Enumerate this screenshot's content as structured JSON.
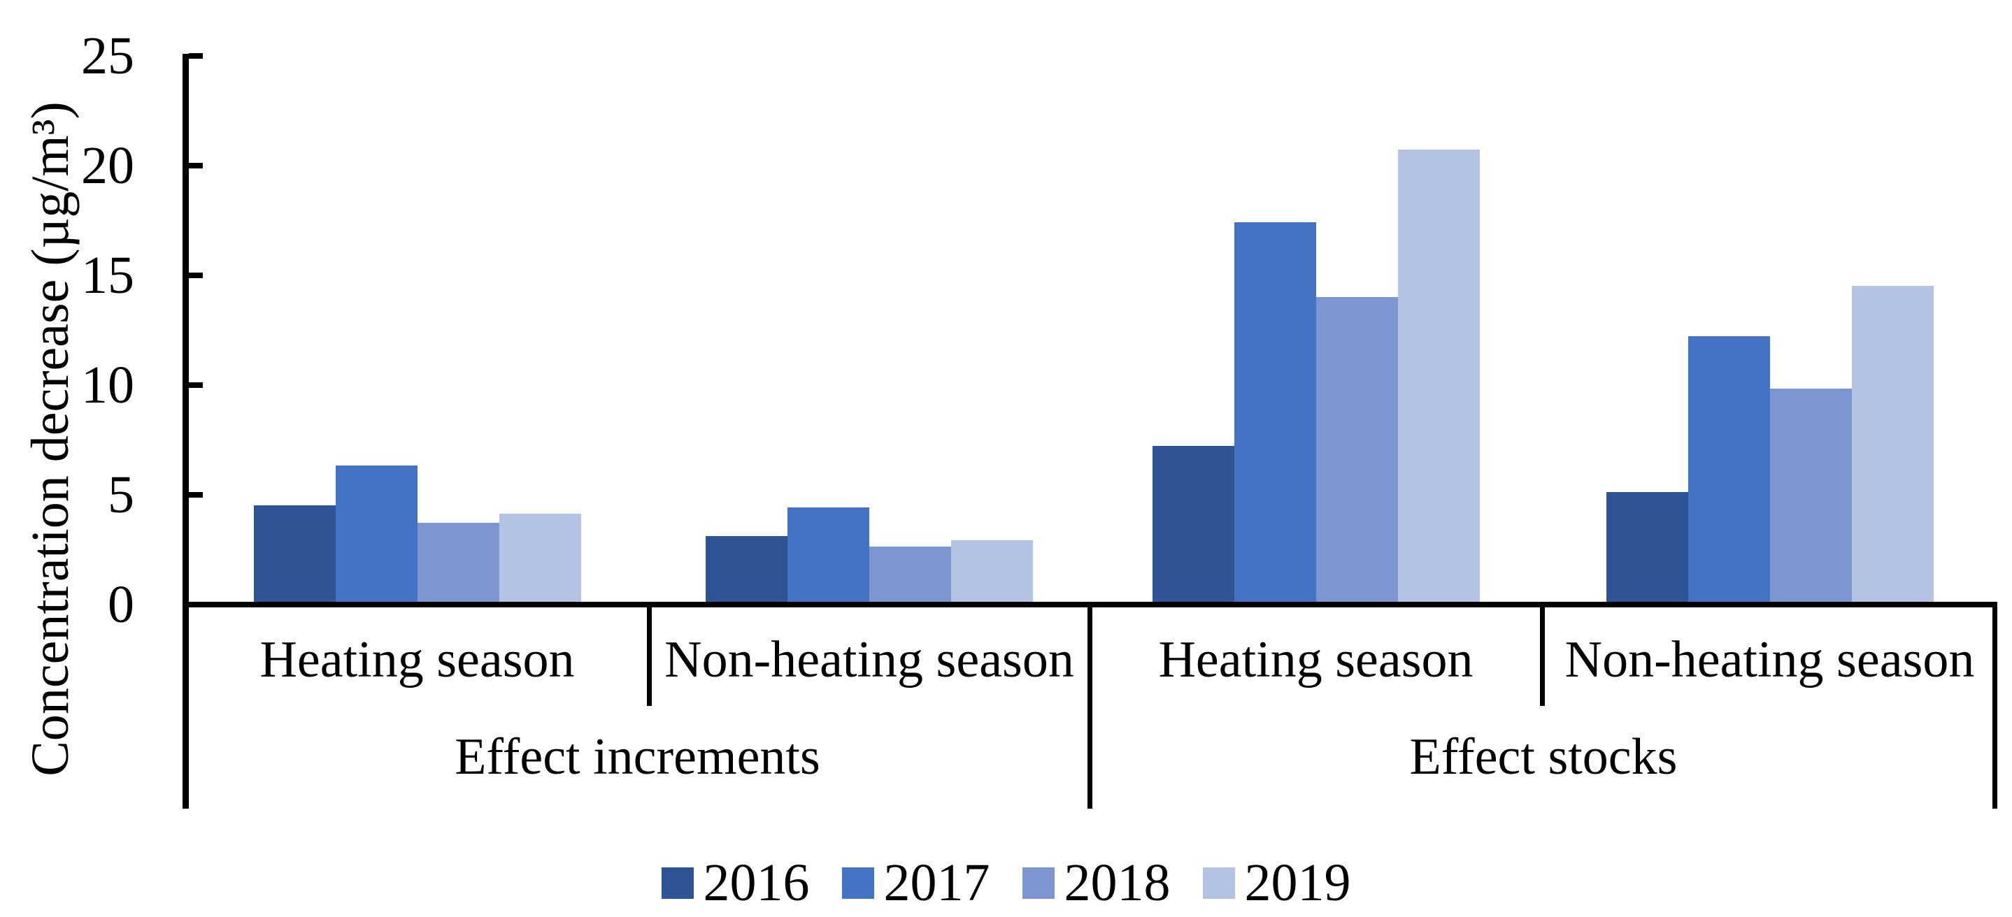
{
  "chart_data": {
    "type": "bar",
    "title": "",
    "ylabel": "Concentration decrease (µg/m³)",
    "xlabel": "",
    "ylim": [
      0,
      25
    ],
    "yticks": [
      0,
      5,
      10,
      15,
      20,
      25
    ],
    "grid": false,
    "legend_position": "bottom",
    "group_labels": [
      "Effect increments",
      "Effect stocks"
    ],
    "categories": [
      "Heating season",
      "Non-heating season",
      "Heating season",
      "Non-heating season"
    ],
    "series": [
      {
        "name": "2016",
        "color": "#2F5496",
        "values": [
          4.4,
          3.0,
          7.1,
          5.0
        ]
      },
      {
        "name": "2017",
        "color": "#4472C4",
        "values": [
          6.2,
          4.3,
          17.3,
          12.1
        ]
      },
      {
        "name": "2018",
        "color": "#7D96D1",
        "values": [
          3.6,
          2.5,
          13.9,
          9.7
        ]
      },
      {
        "name": "2019",
        "color": "#B4C2E4",
        "values": [
          4.0,
          2.8,
          20.6,
          14.4
        ]
      }
    ],
    "axis_color": "#000000",
    "background_color": "#FFFFFF"
  }
}
